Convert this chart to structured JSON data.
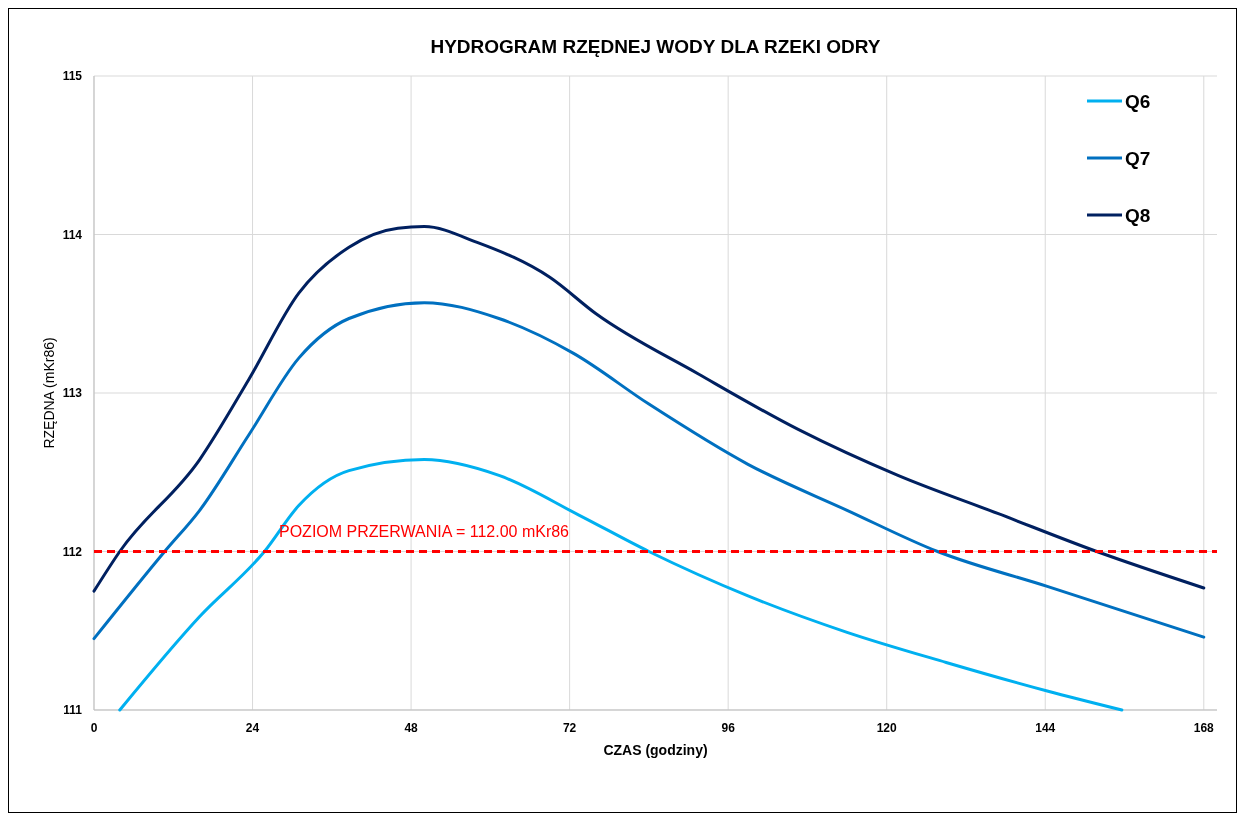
{
  "chart_data": {
    "type": "line",
    "title": "HYDROGRAM RZĘDNEJ WODY DLA RZEKI ODRY",
    "xlabel": "CZAS (godziny)",
    "ylabel": "RZĘDNA  (mKr86)",
    "xlim": [
      0,
      170
    ],
    "xticks": [
      0,
      24,
      48,
      72,
      96,
      120,
      144,
      168
    ],
    "ylim": [
      111,
      115
    ],
    "yticks": [
      111,
      112,
      113,
      114,
      115
    ],
    "grid": true,
    "legend": "top right",
    "marker": "none",
    "line_style": "solid",
    "ref_lines": [
      {
        "axis": "y",
        "value": 112,
        "label": "POZIOM PRZERWANIA = 112.00 mKr86",
        "color": "#ff0000",
        "line_style": "dashed"
      }
    ],
    "series": [
      {
        "name": "Q6",
        "color": "#00b0f0",
        "x": [
          3.9,
          16,
          25.8,
          31,
          38.6,
          50,
          61.3,
          73.4,
          84,
          99,
          114,
          129,
          144.3,
          155.6
        ],
        "values": [
          111,
          111.59,
          112,
          112.29,
          112.51,
          112.58,
          112.48,
          112.23,
          112,
          111.72,
          111.49,
          111.3,
          111.12,
          111
        ]
      },
      {
        "name": "Q7",
        "color": "#0070c0",
        "x": [
          0,
          10.7,
          16,
          23.5,
          31,
          38.6,
          50,
          61.3,
          72.6,
          84,
          99,
          114,
          127.7,
          144.3,
          168
        ],
        "values": [
          111.45,
          112,
          112.26,
          112.74,
          113.22,
          113.47,
          113.57,
          113.47,
          113.25,
          112.93,
          112.55,
          112.26,
          112,
          111.78,
          111.46
        ]
      },
      {
        "name": "Q8",
        "color": "#002060",
        "x": [
          0,
          3.9,
          16,
          23.5,
          31,
          38.6,
          46,
          50,
          58,
          69,
          76,
          91.5,
          106.6,
          121.7,
          136.8,
          151.8,
          168
        ],
        "values": [
          111.75,
          112,
          112.58,
          113.09,
          113.63,
          113.92,
          114.04,
          114.05,
          113.95,
          113.73,
          113.5,
          113.12,
          112.77,
          112.48,
          112.24,
          112,
          111.77
        ]
      }
    ]
  }
}
